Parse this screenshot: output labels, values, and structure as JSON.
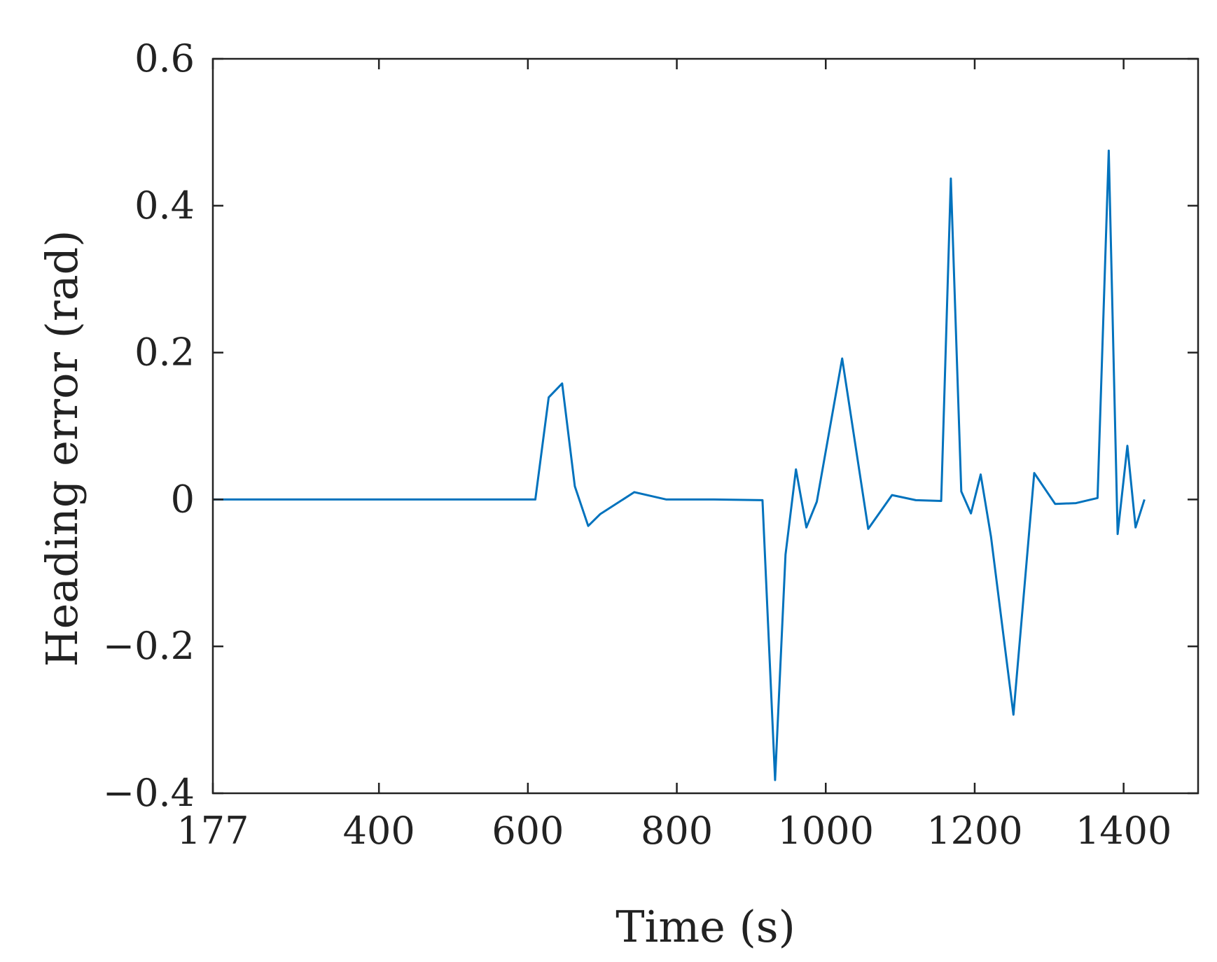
{
  "chart_data": {
    "type": "line",
    "xlabel": "Time (s)",
    "ylabel": "Heading error (rad)",
    "xlim": [
      177,
      1500
    ],
    "ylim": [
      -0.4,
      0.6
    ],
    "x_ticks": [
      177,
      400,
      600,
      800,
      1000,
      1200,
      1400
    ],
    "x_tick_labels": [
      "177",
      "400",
      "600",
      "800",
      "1000",
      "1200",
      "1400"
    ],
    "y_ticks": [
      -0.4,
      -0.2,
      0,
      0.2,
      0.4,
      0.6
    ],
    "y_tick_labels": [
      "−0.4",
      "−0.2",
      "0",
      "0.2",
      "0.4",
      "0.6"
    ],
    "grid": false,
    "legend": "none",
    "series": [
      {
        "color": "#0072BD",
        "x": [
          177,
          610,
          628,
          646,
          663,
          681,
          697,
          743,
          786,
          850,
          915,
          932,
          946,
          960,
          974,
          988,
          1022,
          1057,
          1089,
          1121,
          1155,
          1168,
          1182,
          1195,
          1208,
          1222,
          1252,
          1280,
          1308,
          1336,
          1365,
          1380,
          1392,
          1405,
          1416,
          1428
        ],
        "y": [
          0,
          0,
          0.139,
          0.158,
          0.018,
          -0.036,
          -0.02,
          0.01,
          0,
          0,
          -0.001,
          -0.382,
          -0.075,
          0.041,
          -0.038,
          -0.003,
          0.192,
          -0.04,
          0.006,
          -0.001,
          -0.002,
          0.437,
          0.011,
          -0.019,
          0.034,
          -0.051,
          -0.293,
          0.036,
          -0.006,
          -0.005,
          0.002,
          0.475,
          -0.047,
          0.073,
          -0.038,
          0.0
        ]
      }
    ]
  }
}
